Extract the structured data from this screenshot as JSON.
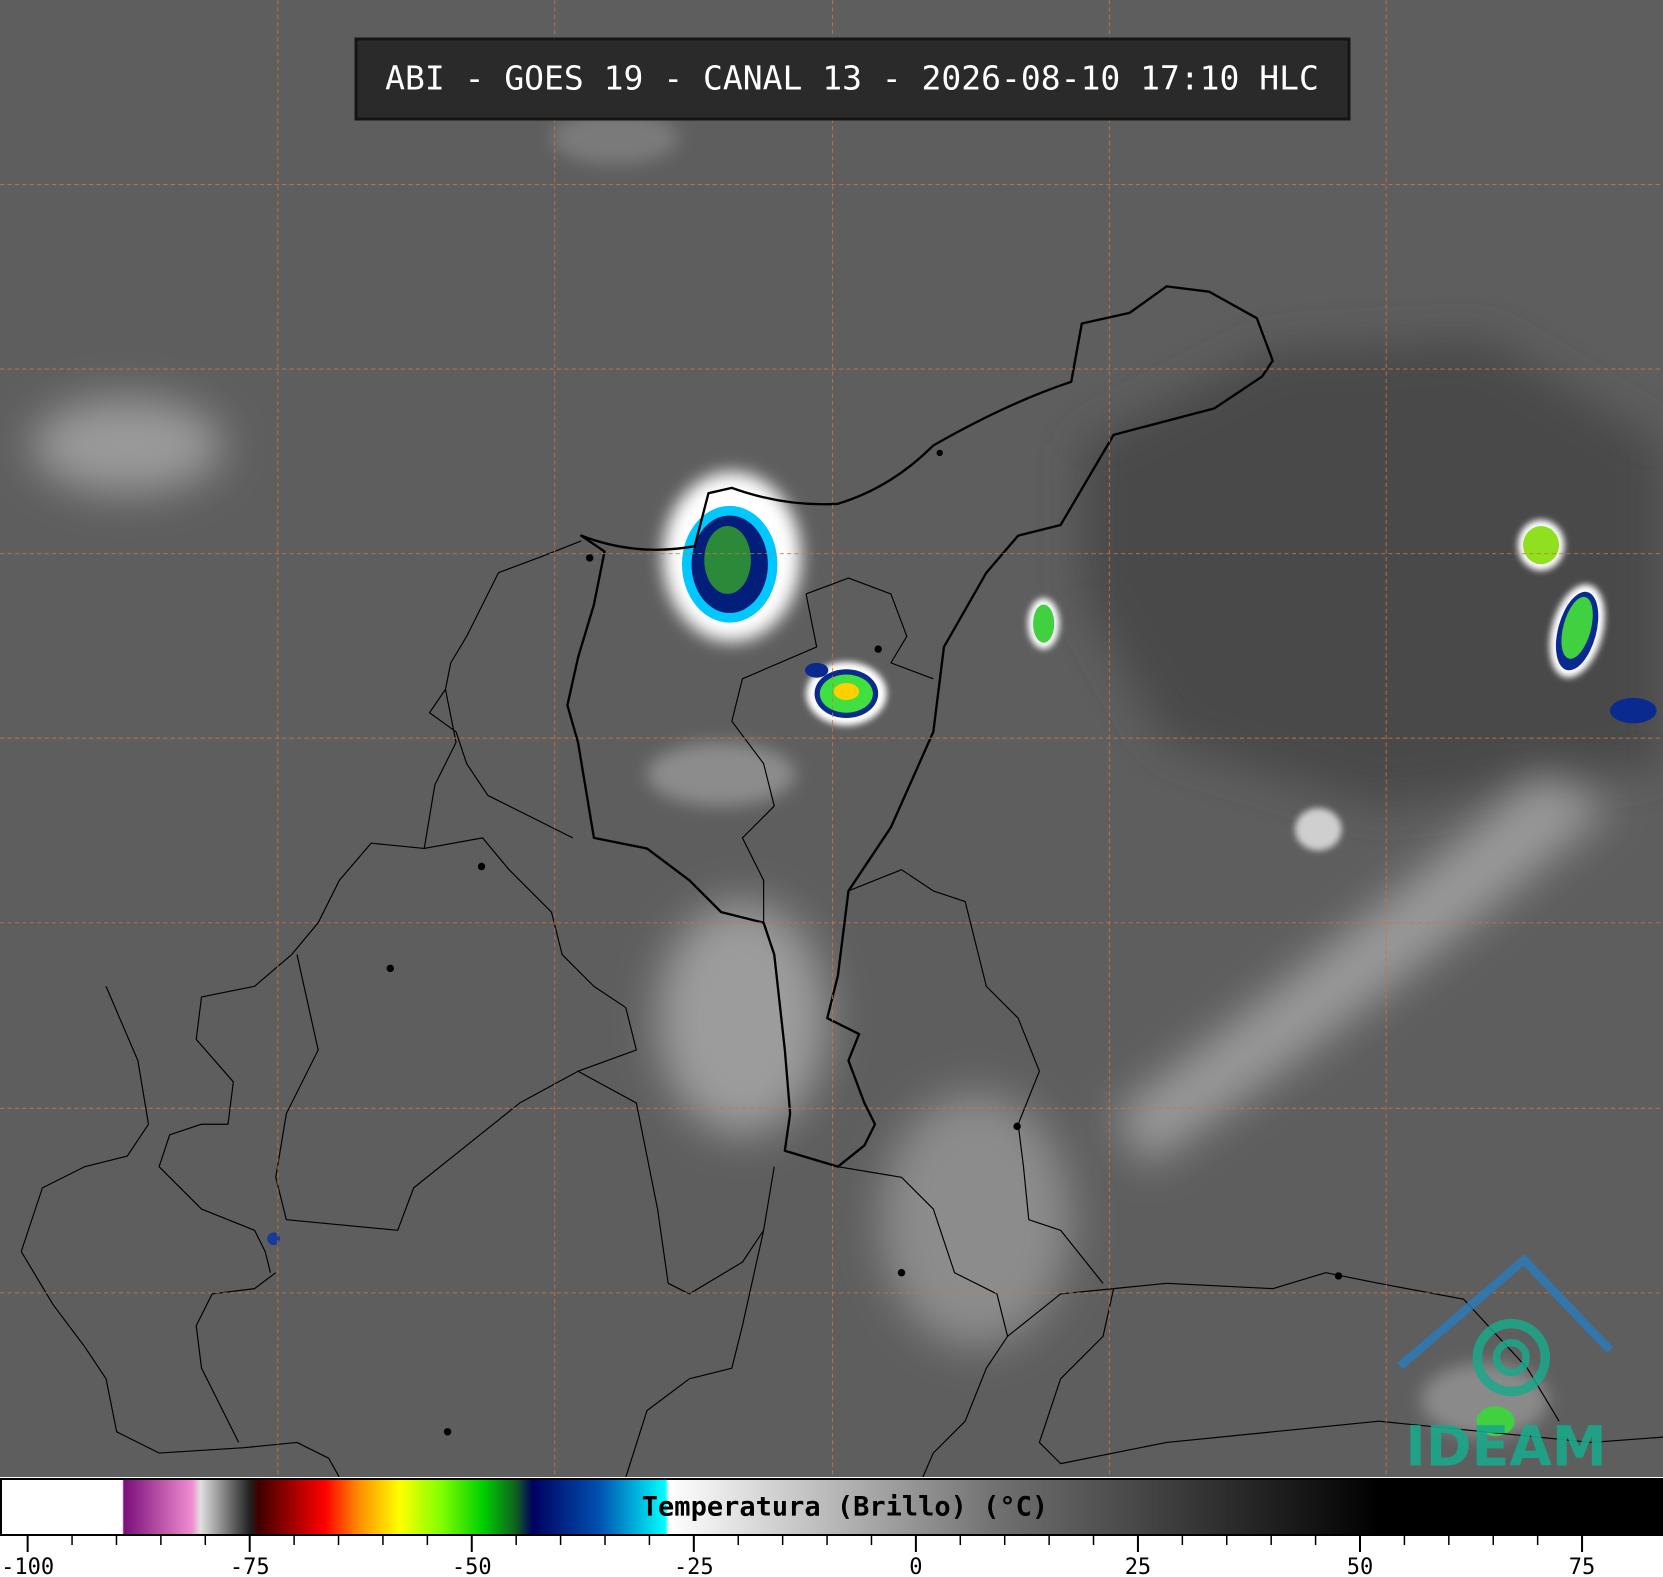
{
  "header": {
    "title": "ABI - GOES 19 - CANAL 13 - 2026-08-10 17:10 HLC"
  },
  "colorbar": {
    "label": "Temperatura (Brillo) (°C)",
    "lim": [
      -103,
      84
    ],
    "ticks": [
      -100,
      -75,
      -50,
      -25,
      0,
      25,
      50,
      75
    ]
  },
  "logo": {
    "text": "IDEAM"
  }
}
